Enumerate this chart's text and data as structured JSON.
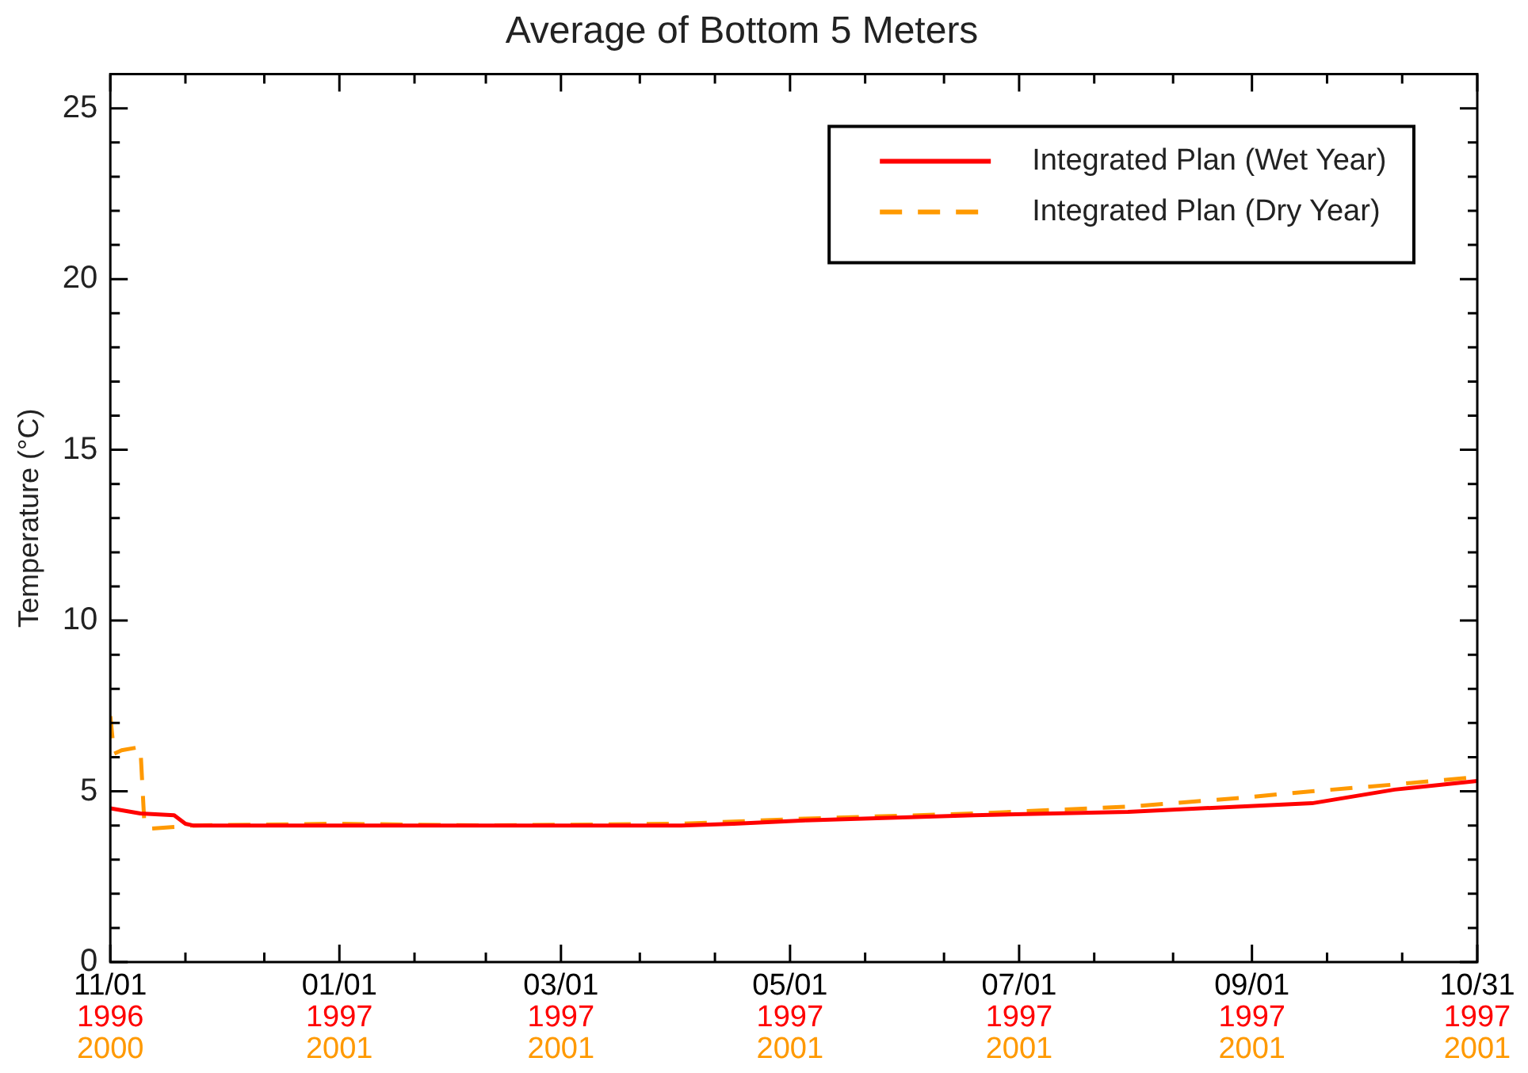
{
  "chart_data": {
    "type": "line",
    "title": "Average of Bottom 5 Meters",
    "ylabel": "Temperature (°C)",
    "xlim": [
      "1996-11-01",
      "1997-10-31"
    ],
    "xticks": [
      {
        "value": "1996-11-01",
        "label": "11/01\n1996\n2000"
      },
      {
        "value": "1996-11-21",
        "label": null
      },
      {
        "value": "1996-12-12",
        "label": null
      },
      {
        "value": "1997-01-01",
        "label": "01/01\n1997\n2001"
      },
      {
        "value": "1997-01-21",
        "label": null
      },
      {
        "value": "1997-02-09",
        "label": null
      },
      {
        "value": "1997-03-01",
        "label": "03/01\n1997\n2001"
      },
      {
        "value": "1997-03-22",
        "label": null
      },
      {
        "value": "1997-04-11",
        "label": null
      },
      {
        "value": "1997-05-01",
        "label": "05/01\n1997\n2001"
      },
      {
        "value": "1997-05-21",
        "label": null
      },
      {
        "value": "1997-06-11",
        "label": null
      },
      {
        "value": "1997-07-01",
        "label": "07/01\n1997\n2001"
      },
      {
        "value": "1997-07-21",
        "label": null
      },
      {
        "value": "1997-08-11",
        "label": null
      },
      {
        "value": "1997-09-01",
        "label": "09/01\n1997\n2001"
      },
      {
        "value": "1997-09-21",
        "label": null
      },
      {
        "value": "1997-10-11",
        "label": null
      },
      {
        "value": "1997-10-31",
        "label": "10/31\n1997\n2001"
      }
    ],
    "ylim": [
      0,
      26
    ],
    "yticks": [
      0,
      {
        "value": 1,
        "label": null
      },
      {
        "value": 2,
        "label": null
      },
      {
        "value": 3,
        "label": null
      },
      {
        "value": 4,
        "label": null
      },
      5,
      {
        "value": 6,
        "label": null
      },
      {
        "value": 7,
        "label": null
      },
      {
        "value": 8,
        "label": null
      },
      {
        "value": 9,
        "label": null
      },
      10,
      {
        "value": 11,
        "label": null
      },
      {
        "value": 12,
        "label": null
      },
      {
        "value": 13,
        "label": null
      },
      {
        "value": 14,
        "label": null
      },
      15,
      {
        "value": 16,
        "label": null
      },
      {
        "value": 17,
        "label": null
      },
      {
        "value": 18,
        "label": null
      },
      {
        "value": 19,
        "label": null
      },
      20,
      {
        "value": 21,
        "label": null
      },
      {
        "value": 22,
        "label": null
      },
      {
        "value": 23,
        "label": null
      },
      {
        "value": 24,
        "label": null
      },
      25
    ],
    "legend": "top right",
    "marker": "none",
    "series": [
      {
        "name": "Integrated Plan (Wet Year)",
        "color": "#ff0000",
        "line_style": "solid",
        "x": [
          "1996-11-01",
          "1996-11-09",
          "1996-11-18",
          "1996-11-21",
          "1996-11-23",
          "1996-12-31",
          "1997-02-09",
          "1997-04-02",
          "1997-04-16",
          "1997-05-05",
          "1997-06-19",
          "1997-07-30",
          "1997-08-28",
          "1997-09-17",
          "1997-10-09",
          "1997-10-31"
        ],
        "values": [
          4.5,
          4.35,
          4.3,
          4.05,
          4.0,
          4.0,
          4.0,
          4.0,
          4.05,
          4.15,
          4.3,
          4.4,
          4.55,
          4.65,
          5.05,
          5.3
        ]
      },
      {
        "name": "Integrated Plan (Dry Year)",
        "color": "#ff9900",
        "line_style": "dashed",
        "x": [
          "1996-11-01",
          "1996-11-02",
          "1996-11-04",
          "1996-11-09",
          "1996-11-10",
          "1996-11-11",
          "1996-11-23",
          "1996-12-31",
          "1997-02-09",
          "1997-04-02",
          "1997-05-05",
          "1997-06-19",
          "1997-07-30",
          "1997-08-28",
          "1997-09-17",
          "1997-10-09",
          "1997-10-31"
        ],
        "values": [
          7.2,
          6.1,
          6.2,
          6.3,
          4.2,
          3.9,
          4.0,
          4.05,
          4.0,
          4.05,
          4.2,
          4.35,
          4.55,
          4.8,
          5.0,
          5.2,
          5.42
        ]
      }
    ]
  }
}
